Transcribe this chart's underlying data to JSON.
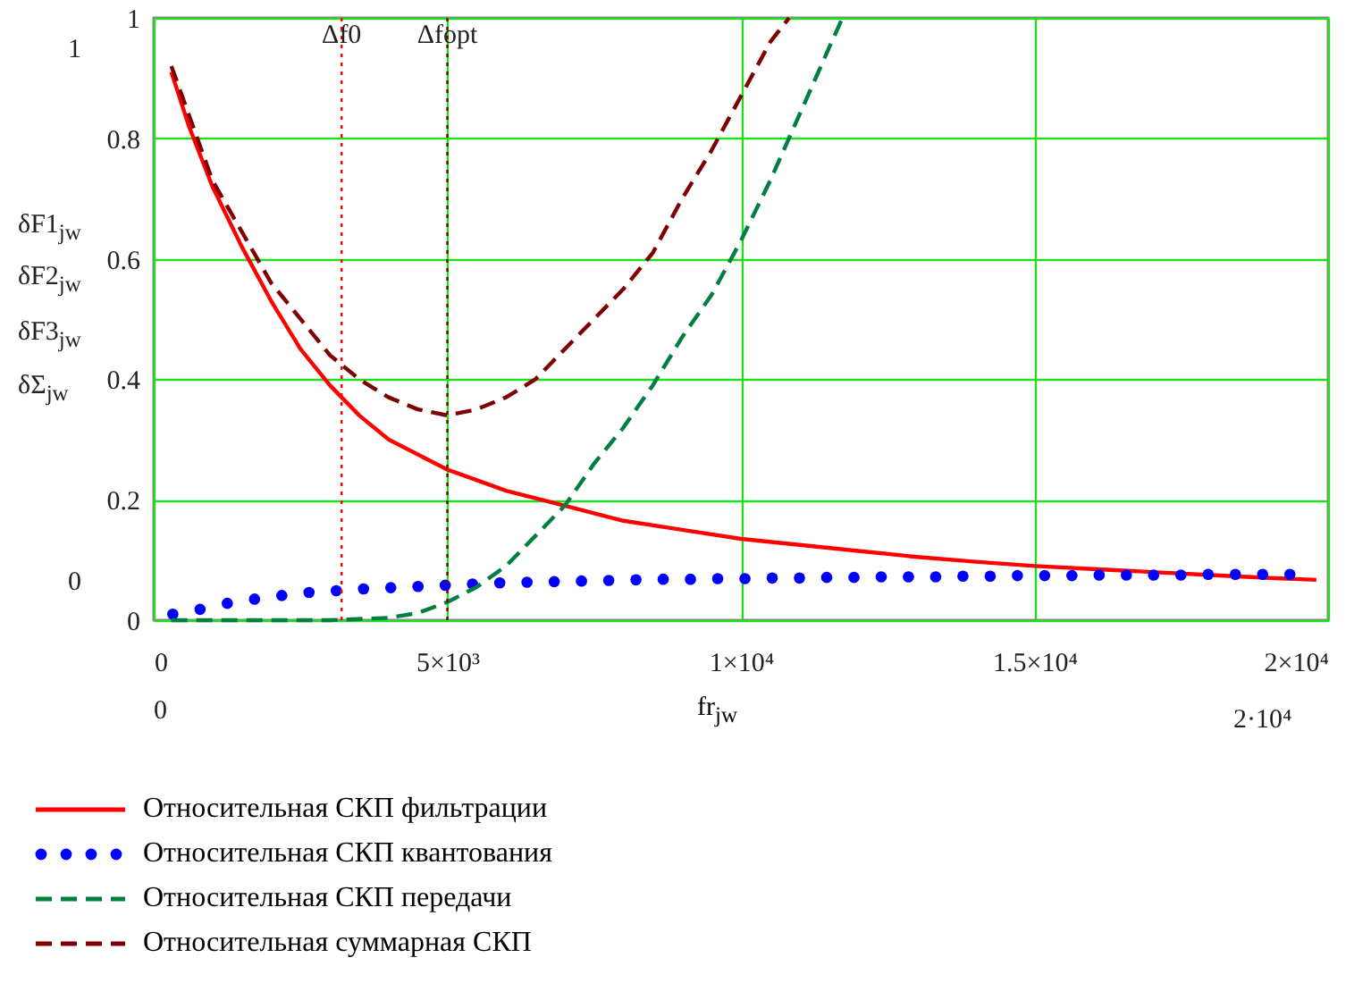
{
  "chart_data": {
    "type": "line",
    "xlabel": "fr$_{jw}$",
    "xlim": [
      0,
      20000
    ],
    "xticks": [
      0,
      {
        "value": 5000,
        "label": "5×10³"
      },
      {
        "value": 10000,
        "label": "1×10⁴"
      },
      {
        "value": 15000,
        "label": "1.5×10⁴"
      },
      {
        "value": 20000,
        "label": "2×10⁴"
      }
    ],
    "ylim": [
      0,
      1
    ],
    "yticks": [
      0,
      0.2,
      0.4,
      0.6,
      0.8,
      1
    ],
    "grid": true,
    "legend": "bottom",
    "series": [
      {
        "name": "Относительная СКП фильтрации",
        "color": "#ff0000",
        "line_style": "solid",
        "x": [
          300,
          600,
          1000,
          1500,
          2000,
          2500,
          3000,
          3500,
          4000,
          5000,
          6000,
          7000,
          8000,
          9000,
          10000,
          11000,
          12000,
          13000,
          14000,
          15000,
          16000,
          17000,
          18000,
          19000,
          19800
        ],
        "values": [
          0.91,
          0.82,
          0.72,
          0.62,
          0.53,
          0.45,
          0.39,
          0.34,
          0.3,
          0.25,
          0.215,
          0.19,
          0.165,
          0.15,
          0.135,
          0.125,
          0.115,
          0.105,
          0.097,
          0.09,
          0.085,
          0.08,
          0.075,
          0.07,
          0.067
        ]
      },
      {
        "name": "Относительная СКП квантования",
        "color": "#0000ff",
        "type": "scatter",
        "marker": "circle",
        "x": [
          325,
          789,
          1253,
          1717,
          2181,
          2645,
          3109,
          3573,
          4037,
          4501,
          4965,
          5429,
          5893,
          6357,
          6821,
          7285,
          7749,
          8213,
          8677,
          9141,
          9605,
          10069,
          10533,
          10997,
          11461,
          11925,
          12389,
          12853,
          13317,
          13781,
          14245,
          14709,
          15173,
          15637,
          16101,
          16565,
          17029,
          17493,
          17957,
          18421,
          18885,
          19349
        ],
        "values": [
          0.01,
          0.018,
          0.028,
          0.035,
          0.041,
          0.046,
          0.049,
          0.052,
          0.054,
          0.056,
          0.058,
          0.06,
          0.062,
          0.063,
          0.064,
          0.065,
          0.066,
          0.067,
          0.068,
          0.068,
          0.069,
          0.069,
          0.07,
          0.07,
          0.071,
          0.071,
          0.072,
          0.072,
          0.072,
          0.073,
          0.073,
          0.074,
          0.074,
          0.074,
          0.075,
          0.075,
          0.075,
          0.075,
          0.076,
          0.076,
          0.076,
          0.076
        ]
      },
      {
        "name": "Относительная СКП передачи",
        "color": "#008040",
        "line_style": "dashed",
        "x": [
          300,
          3000,
          4000,
          4500,
          5000,
          5500,
          6000,
          6500,
          7000,
          7500,
          8000,
          8500,
          9000,
          9500,
          10000,
          10500,
          11000,
          11500,
          11730
        ],
        "values": [
          0,
          0,
          0.004,
          0.012,
          0.03,
          0.055,
          0.09,
          0.14,
          0.19,
          0.26,
          0.32,
          0.39,
          0.47,
          0.54,
          0.63,
          0.73,
          0.84,
          0.95,
          1
        ]
      },
      {
        "name": "Относительная суммарная СКП",
        "color": "#800000",
        "line_style": "dashed",
        "x": [
          300,
          1000,
          2000,
          3000,
          3500,
          4000,
          4500,
          5000,
          5500,
          6000,
          6500,
          7000,
          7500,
          8000,
          8500,
          9000,
          9500,
          10000,
          10500,
          10820
        ],
        "values": [
          0.92,
          0.73,
          0.56,
          0.44,
          0.4,
          0.37,
          0.35,
          0.34,
          0.35,
          0.37,
          0.4,
          0.45,
          0.5,
          0.55,
          0.61,
          0.7,
          0.78,
          0.87,
          0.96,
          1
        ]
      }
    ],
    "ref_lines": [
      {
        "axis": "x",
        "value": 3200,
        "label": "Δf0",
        "color": "#ff0000",
        "line_style": "dotted"
      },
      {
        "axis": "x",
        "value": 5000,
        "label": "Δfopt",
        "color": "#800000",
        "line_style": "dotted"
      }
    ],
    "annotations": [
      "δF1$_{jw}$",
      "δF2$_{jw}$",
      "δF3$_{jw}$",
      "δΣ$_{jw}$",
      "1",
      "0",
      "0",
      "2·10⁴"
    ]
  }
}
